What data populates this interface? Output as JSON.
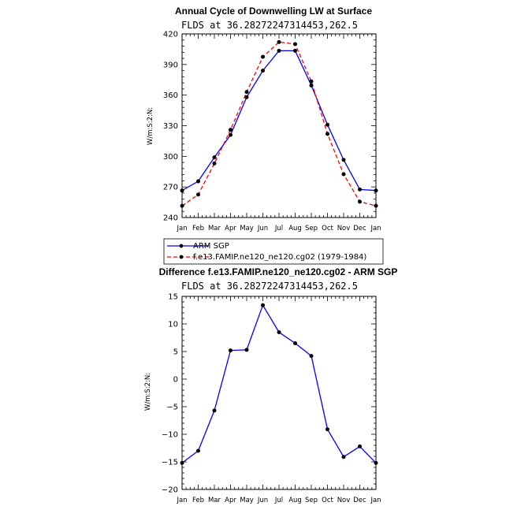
{
  "chart_data": [
    {
      "type": "line",
      "title": "Annual Cycle of Downwelling LW at Surface",
      "subtitle": "FLDS at 36.28272247314453,262.5",
      "ylabel": "W/m:S:2:N:",
      "xlabel": "",
      "categories": [
        "Jan",
        "Feb",
        "Mar",
        "Apr",
        "May",
        "Jun",
        "Jul",
        "Aug",
        "Sep",
        "Oct",
        "Nov",
        "Dec",
        "Jan"
      ],
      "ylim": [
        240,
        420
      ],
      "yticks": [
        240,
        270,
        300,
        330,
        360,
        390,
        420
      ],
      "series": [
        {
          "name": "ARM SGP",
          "color": "#0000ff",
          "dash": "solid",
          "values": [
            266.5,
            275.5,
            299,
            321,
            358,
            384,
            403.5,
            403.5,
            369.5,
            331,
            296.5,
            267.5,
            266.5
          ]
        },
        {
          "name": "f.e13.FAMIP.ne120_ne120.cg02 (1979-1984)",
          "color": "#ff0000",
          "dash": "dashed",
          "values": [
            251.5,
            262.5,
            293,
            326,
            363,
            397.5,
            412,
            410,
            373.5,
            322,
            282.5,
            255.5,
            251.5
          ]
        }
      ]
    },
    {
      "type": "line",
      "title": "Difference f.e13.FAMIP.ne120_ne120.cg02 - ARM SGP",
      "subtitle": "FLDS at 36.28272247314453,262.5",
      "ylabel": "W/m:S:2:N:",
      "xlabel": "",
      "categories": [
        "Jan",
        "Feb",
        "Mar",
        "Apr",
        "May",
        "Jun",
        "Jul",
        "Aug",
        "Sep",
        "Oct",
        "Nov",
        "Dec",
        "Jan"
      ],
      "ylim": [
        -20,
        15
      ],
      "yticks": [
        -20,
        -15,
        -10,
        -5,
        0,
        5,
        10,
        15
      ],
      "series": [
        {
          "name": "Difference",
          "color": "#0000ff",
          "dash": "solid",
          "values": [
            -15.2,
            -13,
            -5.7,
            5.2,
            5.3,
            13.4,
            8.5,
            6.5,
            4.2,
            -9.1,
            -14.1,
            -12.2,
            -15.2
          ]
        }
      ]
    }
  ]
}
